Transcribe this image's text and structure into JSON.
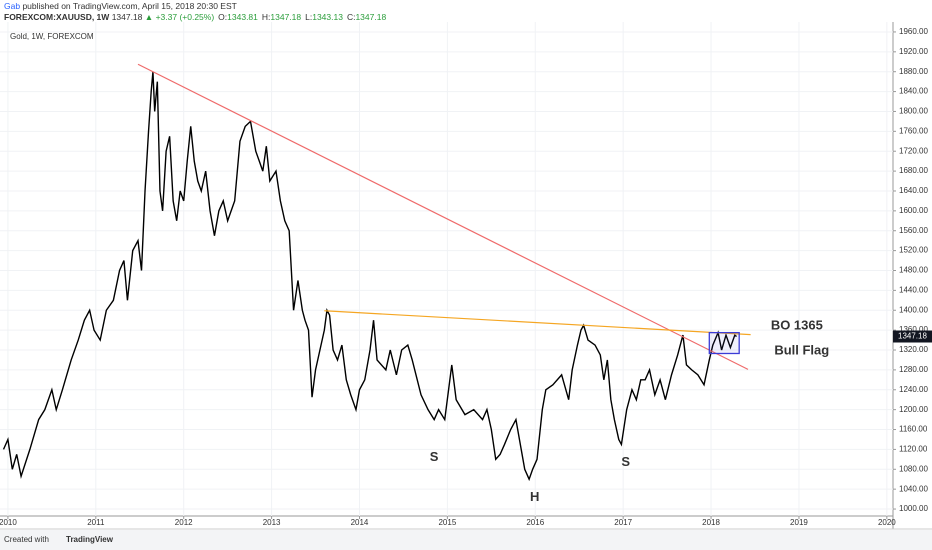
{
  "header": {
    "author": "Gab",
    "published": "published on TradingView.com, April 15, 2018 20:30 EST",
    "symbol": "FOREXCOM:XAUUSD, 1W",
    "price": "1347.18",
    "change": "▲ +3.37 (+0.25%)",
    "ohlc": [
      {
        "k": "O:",
        "v": "1343.81"
      },
      {
        "k": "H:",
        "v": "1347.18"
      },
      {
        "k": "L:",
        "v": "1343.13"
      },
      {
        "k": "C:",
        "v": "1347.18"
      }
    ]
  },
  "footer": {
    "created": "Created with",
    "brand": "TradingView"
  },
  "chart_data": {
    "type": "line",
    "title": "Gold, 1W, FOREXCOM",
    "color": "#000000",
    "grid": true,
    "x": [
      2009.95,
      2010.0,
      2010.05,
      2010.1,
      2010.15,
      2010.25,
      2010.35,
      2010.42,
      2010.5,
      2010.55,
      2010.62,
      2010.72,
      2010.8,
      2010.87,
      2010.93,
      2010.98,
      2011.05,
      2011.12,
      2011.2,
      2011.27,
      2011.32,
      2011.36,
      2011.42,
      2011.48,
      2011.52,
      2011.56,
      2011.6,
      2011.63,
      2011.65,
      2011.67,
      2011.7,
      2011.73,
      2011.76,
      2011.8,
      2011.84,
      2011.88,
      2011.92,
      2011.96,
      2012.0,
      2012.04,
      2012.08,
      2012.12,
      2012.16,
      2012.2,
      2012.25,
      2012.3,
      2012.35,
      2012.4,
      2012.45,
      2012.5,
      2012.58,
      2012.64,
      2012.7,
      2012.76,
      2012.82,
      2012.86,
      2012.9,
      2012.94,
      2012.98,
      2013.05,
      2013.1,
      2013.15,
      2013.2,
      2013.25,
      2013.3,
      2013.35,
      2013.38,
      2013.42,
      2013.46,
      2013.5,
      2013.55,
      2013.6,
      2013.63,
      2013.66,
      2013.7,
      2013.75,
      2013.8,
      2013.85,
      2013.9,
      2013.96,
      2014.0,
      2014.06,
      2014.12,
      2014.16,
      2014.2,
      2014.3,
      2014.35,
      2014.42,
      2014.48,
      2014.55,
      2014.6,
      2014.7,
      2014.78,
      2014.85,
      2014.9,
      2014.97,
      2015.05,
      2015.1,
      2015.2,
      2015.3,
      2015.4,
      2015.45,
      2015.5,
      2015.55,
      2015.6,
      2015.65,
      2015.72,
      2015.78,
      2015.82,
      2015.88,
      2015.93,
      2015.97,
      2016.02,
      2016.08,
      2016.12,
      2016.2,
      2016.3,
      2016.38,
      2016.42,
      2016.48,
      2016.52,
      2016.55,
      2016.6,
      2016.68,
      2016.74,
      2016.78,
      2016.82,
      2016.86,
      2016.9,
      2016.95,
      2016.98,
      2017.04,
      2017.1,
      2017.15,
      2017.2,
      2017.25,
      2017.3,
      2017.36,
      2017.42,
      2017.48,
      2017.55,
      2017.62,
      2017.68,
      2017.72,
      2017.78,
      2017.85,
      2017.92,
      2017.98,
      2018.02,
      2018.08,
      2018.12,
      2018.17,
      2018.22,
      2018.27,
      2018.29
    ],
    "values": [
      1120,
      1140,
      1080,
      1110,
      1066,
      1120,
      1180,
      1200,
      1240,
      1200,
      1240,
      1300,
      1340,
      1380,
      1400,
      1360,
      1340,
      1400,
      1420,
      1480,
      1500,
      1420,
      1520,
      1540,
      1480,
      1640,
      1760,
      1840,
      1880,
      1800,
      1860,
      1640,
      1600,
      1720,
      1750,
      1620,
      1580,
      1640,
      1620,
      1700,
      1770,
      1700,
      1660,
      1640,
      1680,
      1600,
      1550,
      1600,
      1620,
      1580,
      1620,
      1740,
      1770,
      1780,
      1720,
      1700,
      1680,
      1730,
      1660,
      1680,
      1620,
      1580,
      1560,
      1400,
      1460,
      1400,
      1380,
      1360,
      1225,
      1280,
      1320,
      1360,
      1400,
      1390,
      1320,
      1300,
      1330,
      1260,
      1230,
      1200,
      1240,
      1260,
      1320,
      1380,
      1300,
      1280,
      1320,
      1270,
      1320,
      1330,
      1300,
      1230,
      1200,
      1180,
      1200,
      1180,
      1290,
      1220,
      1190,
      1200,
      1180,
      1200,
      1160,
      1100,
      1110,
      1130,
      1160,
      1180,
      1140,
      1080,
      1060,
      1080,
      1100,
      1200,
      1240,
      1250,
      1270,
      1220,
      1280,
      1330,
      1360,
      1370,
      1340,
      1330,
      1310,
      1260,
      1300,
      1220,
      1180,
      1140,
      1130,
      1200,
      1240,
      1220,
      1260,
      1260,
      1280,
      1230,
      1260,
      1220,
      1270,
      1310,
      1350,
      1290,
      1280,
      1270,
      1250,
      1300,
      1330,
      1355,
      1320,
      1350,
      1325,
      1350,
      1347.18
    ],
    "last_price": 1347.18,
    "xlim": [
      2009.91,
      2020.07
    ],
    "xticks": [
      {
        "value": 2010,
        "label": "2010"
      },
      2011,
      2012,
      2013,
      2014,
      2015,
      2016,
      2017,
      2018,
      2019,
      2020
    ],
    "ylim": [
      986,
      1980
    ],
    "yticks": [
      {
        "value": 1000,
        "label": "1000.00"
      },
      {
        "value": 1040,
        "label": "1040.00"
      },
      {
        "value": 1080,
        "label": "1080.00"
      },
      {
        "value": 1120,
        "label": "1120.00"
      },
      {
        "value": 1160,
        "label": "1160.00"
      },
      {
        "value": 1200,
        "label": "1200.00"
      },
      {
        "value": 1240,
        "label": "1240.00"
      },
      {
        "value": 1280,
        "label": "1280.00"
      },
      {
        "value": 1320,
        "label": "1320.00"
      },
      {
        "value": 1360,
        "label": "1360.00"
      },
      {
        "value": 1400,
        "label": "1400.00"
      },
      {
        "value": 1440,
        "label": "1440.00"
      },
      {
        "value": 1480,
        "label": "1480.00"
      },
      {
        "value": 1520,
        "label": "1520.00"
      },
      {
        "value": 1560,
        "label": "1560.00"
      },
      {
        "value": 1600,
        "label": "1600.00"
      },
      {
        "value": 1640,
        "label": "1640.00"
      },
      {
        "value": 1680,
        "label": "1680.00"
      },
      {
        "value": 1720,
        "label": "1720.00"
      },
      {
        "value": 1760,
        "label": "1760.00"
      },
      {
        "value": 1800,
        "label": "1800.00"
      },
      {
        "value": 1840,
        "label": "1840.00"
      },
      {
        "value": 1880,
        "label": "1880.00"
      },
      {
        "value": 1920,
        "label": "1920.00"
      },
      {
        "value": 1960,
        "label": "1960.00"
      }
    ],
    "trendlines": [
      {
        "color": "#ef6b6b",
        "points": [
          [
            2011.48,
            1895
          ],
          [
            2018.42,
            1281
          ]
        ]
      },
      {
        "color": "#f5a623",
        "points": [
          [
            2013.6,
            1399
          ],
          [
            2018.45,
            1351
          ]
        ]
      }
    ],
    "boxes": [
      {
        "color": "#3b3bd6",
        "x": [
          2017.98,
          2018.32
        ],
        "y": [
          1313,
          1355
        ]
      }
    ],
    "annotations": [
      {
        "text": "BO 1365",
        "x": 2018.68,
        "y": 1368,
        "color": "#111111"
      },
      {
        "text": "Bull Flag",
        "x": 2018.72,
        "y": 1318,
        "color": "#2f35d0"
      },
      {
        "text": "S",
        "x": 2014.8,
        "y": 1104,
        "color": "#111111"
      },
      {
        "text": "H",
        "x": 2015.94,
        "y": 1023,
        "color": "#111111"
      },
      {
        "text": "S",
        "x": 2016.98,
        "y": 1094,
        "color": "#111111"
      }
    ]
  }
}
